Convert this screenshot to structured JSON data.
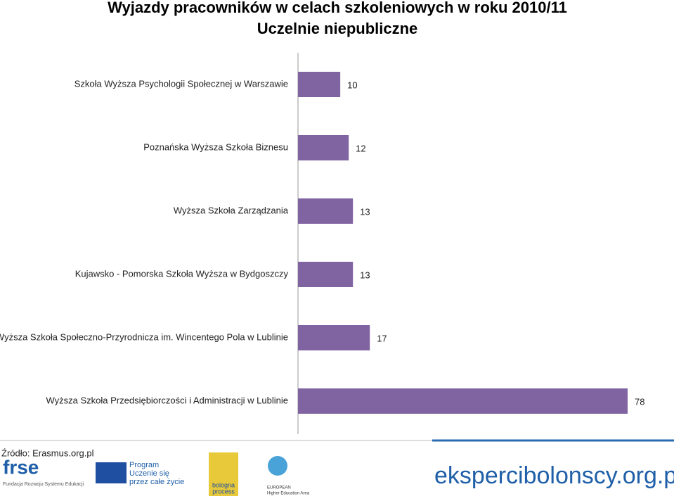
{
  "chart_data": {
    "type": "bar",
    "orientation": "horizontal",
    "title": "Wyjazdy pracowników w celach szkoleniowych w roku 2010/11",
    "subtitle": "Uczelnie niepubliczne",
    "categories": [
      "Szkoła Wyższa Psychologii Społecznej w Warszawie",
      "Poznańska Wyższa Szkoła Biznesu",
      "Wyższa Szkoła Zarządzania",
      "Kujawsko - Pomorska Szkoła Wyższa w Bydgoszczy",
      "Wyższa Szkoła Społeczno-Przyrodnicza im. Wincentego Pola w Lublinie",
      "Wyższa Szkoła Przedsiębiorczości i Administracji w Lublinie"
    ],
    "values": [
      10,
      12,
      13,
      13,
      17,
      78
    ],
    "color": "#8064a2"
  },
  "footer": {
    "source": "Źródło: Erasmus.org.pl",
    "frse": "frse",
    "frse_name": "Fundacja Rozwoju Systemu Edukacji",
    "llp": [
      "Program",
      "Uczenie się",
      "przez całe życie"
    ],
    "bologna": [
      "bologna",
      "process"
    ],
    "ehea": [
      "EUROPEAN",
      "Higher Education Area"
    ],
    "site": "ekspercibolonscy.org.pl"
  }
}
